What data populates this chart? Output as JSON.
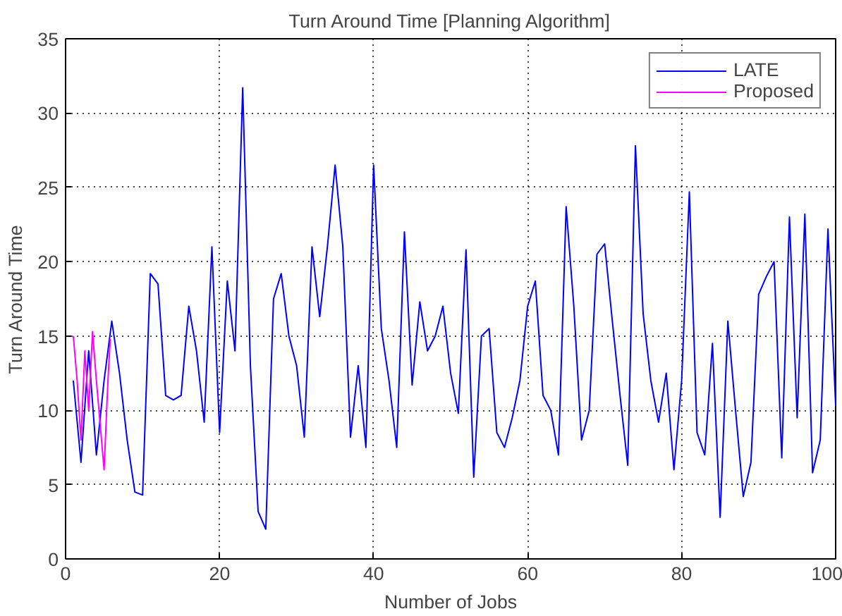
{
  "chart_data": {
    "type": "line",
    "title": "Turn Around Time [Planning Algorithm]",
    "xlabel": "Number of Jobs",
    "ylabel": "Turn Around Time",
    "xlim": [
      0,
      100
    ],
    "ylim": [
      0,
      35
    ],
    "xticks": [
      0,
      20,
      40,
      60,
      80,
      100
    ],
    "yticks": [
      0,
      5,
      10,
      15,
      20,
      25,
      30,
      35
    ],
    "grid": true,
    "legend": "top right",
    "line_style": "solid",
    "series": [
      {
        "name": "LATE",
        "color": "#0000ff",
        "x": [
          1,
          2,
          3,
          4,
          5,
          6,
          7,
          8,
          9,
          10,
          11,
          12,
          13,
          14,
          15,
          16,
          17,
          18,
          19,
          20,
          21,
          22,
          23,
          24,
          25,
          26,
          27,
          28,
          29,
          30,
          31,
          32,
          33,
          34,
          35,
          36,
          37,
          38,
          39,
          40,
          41,
          42,
          43,
          44,
          45,
          46,
          47,
          48,
          49,
          50,
          51,
          52,
          53,
          54,
          55,
          56,
          57,
          58,
          59,
          60,
          61,
          62,
          63,
          64,
          65,
          66,
          67,
          68,
          69,
          70,
          71,
          72,
          73,
          74,
          75,
          76,
          77,
          78,
          79,
          80,
          81,
          82,
          83,
          84,
          85,
          86,
          87,
          88,
          89,
          90,
          91,
          92,
          93,
          94,
          95,
          96,
          97,
          98,
          99,
          100
        ],
        "values": [
          12,
          6.5,
          14,
          7,
          12,
          16,
          12.5,
          8,
          4.5,
          4.3,
          19.2,
          18.5,
          11,
          10.7,
          11,
          17,
          14,
          9.2,
          21,
          8.5,
          18.7,
          14,
          31.7,
          13,
          3.2,
          2,
          17.5,
          19.2,
          15,
          13,
          8.2,
          21,
          16.3,
          21,
          26.5,
          21,
          8.2,
          13,
          7.5,
          26.5,
          15.5,
          12,
          7.5,
          22,
          11.7,
          17.3,
          14,
          15,
          17,
          12.5,
          9.8,
          20.8,
          5.5,
          15,
          15.5,
          8.5,
          7.5,
          9.5,
          12,
          17,
          18.7,
          11,
          10,
          7,
          23.7,
          17,
          8,
          10,
          20.5,
          21.2,
          16,
          11,
          6.3,
          27.8,
          16.5,
          12,
          9.2,
          12.5,
          6,
          12,
          24.7,
          8.5,
          7,
          14.5,
          2.8,
          16,
          10,
          4.2,
          6.5,
          17.8,
          19,
          20,
          6.8,
          23,
          9.5,
          23.2,
          5.8,
          8,
          22.2,
          10.3
        ]
      },
      {
        "name": "Proposed",
        "color": "#ff00ff",
        "x": [
          1,
          1.5,
          2,
          2.5,
          3,
          3.5,
          4,
          4.5,
          5,
          5.5,
          5.8
        ],
        "values": [
          15,
          12,
          8,
          14,
          10,
          15.3,
          12,
          9,
          6,
          12,
          14.8
        ]
      }
    ]
  }
}
